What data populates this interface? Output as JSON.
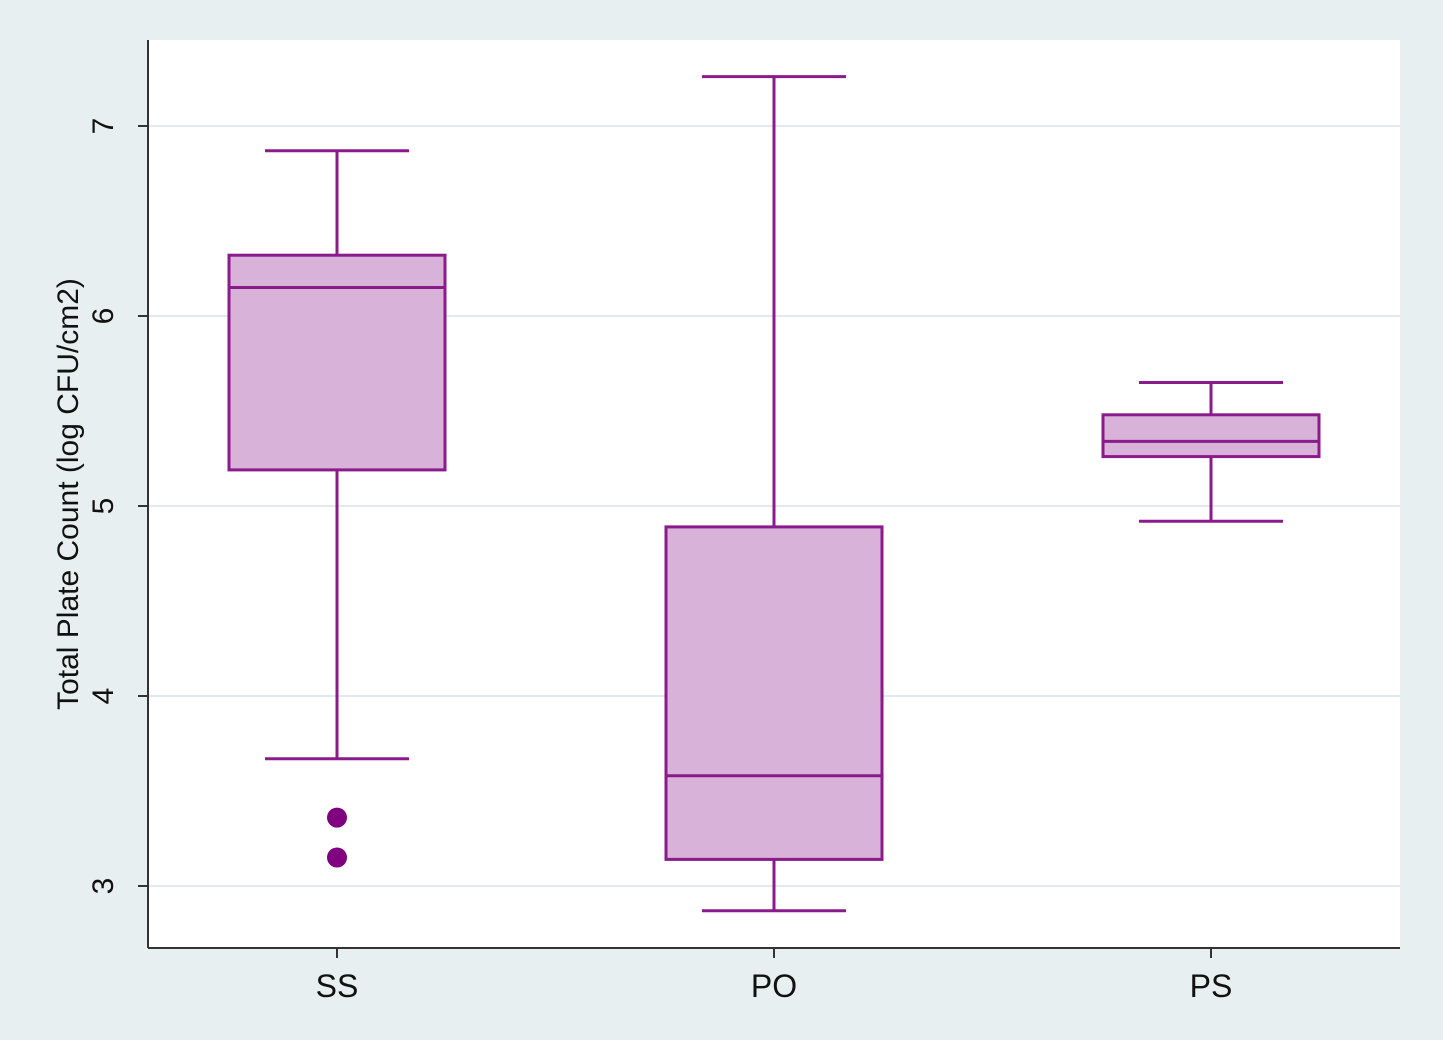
{
  "chart_data": {
    "type": "box",
    "title": "",
    "xlabel": "",
    "ylabel": "Total Plate Count (log CFU/cm2)",
    "ylim": [
      2.68,
      7.45
    ],
    "yticks": [
      3,
      4,
      5,
      6,
      7
    ],
    "ytick_labels": [
      "3",
      "4",
      "5",
      "6",
      "7"
    ],
    "grid": true,
    "categories": [
      "SS",
      "PO",
      "PS"
    ],
    "boxes": [
      {
        "category": "SS",
        "whisker_low": 3.67,
        "q1": 5.19,
        "median": 6.15,
        "q3": 6.32,
        "whisker_high": 6.87,
        "outliers": [
          3.36,
          3.15
        ]
      },
      {
        "category": "PO",
        "whisker_low": 2.87,
        "q1": 3.14,
        "median": 3.58,
        "q3": 4.89,
        "whisker_high": 7.26,
        "outliers": []
      },
      {
        "category": "PS",
        "whisker_low": 4.92,
        "q1": 5.26,
        "median": 5.34,
        "q3": 5.48,
        "whisker_high": 5.65,
        "outliers": []
      }
    ]
  },
  "colors": {
    "page_background": "#e8eff1",
    "plot_background": "#ffffff",
    "box_fill": "#d8b2d8",
    "box_stroke": "#8b1a8b",
    "outlier": "#800080",
    "grid": "#e3eaed",
    "axis": "#333333"
  }
}
